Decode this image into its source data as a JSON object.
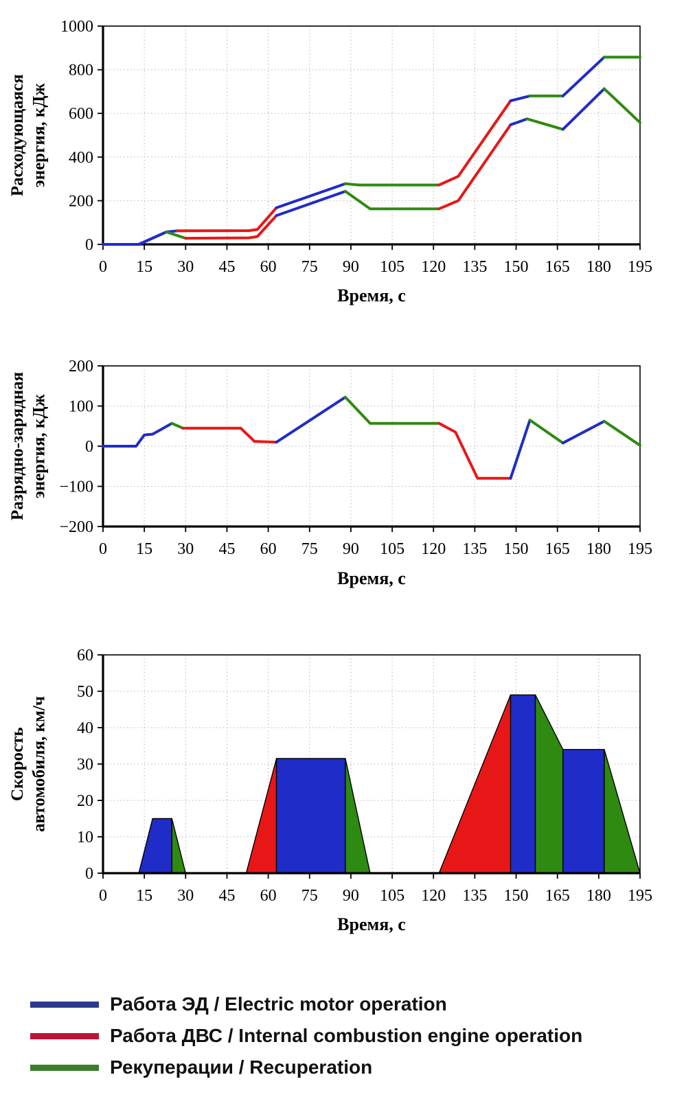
{
  "figure": {
    "background": "#ffffff"
  },
  "palette": {
    "blue": "#1f2cc8",
    "red": "#e81717",
    "green": "#2e8a10"
  },
  "chart_data": [
    {
      "id": "consumed-energy",
      "type": "line",
      "ylabel": "Расходующаяся\nэнергия, кДж",
      "xlabel": "Время, с",
      "xlim": [
        0,
        195
      ],
      "ylim": [
        0,
        1000
      ],
      "x_ticks": [
        0,
        15,
        30,
        45,
        60,
        75,
        90,
        105,
        120,
        135,
        150,
        165,
        180,
        195
      ],
      "y_ticks": [
        0,
        200,
        400,
        600,
        800,
        1000
      ],
      "grid": true,
      "series": [
        {
          "name": "line-1",
          "segments": [
            {
              "color": "blue",
              "points": [
                [
                  0,
                  0
                ],
                [
                  13,
                  0
                ],
                [
                  23,
                  57
                ],
                [
                  27,
                  62
                ]
              ]
            },
            {
              "color": "red",
              "points": [
                [
                  27,
                  62
                ],
                [
                  53,
                  63
                ],
                [
                  56,
                  68
                ],
                [
                  63,
                  168
                ]
              ]
            },
            {
              "color": "blue",
              "points": [
                [
                  63,
                  168
                ],
                [
                  88,
                  278
                ]
              ]
            },
            {
              "color": "green",
              "points": [
                [
                  88,
                  278
                ],
                [
                  93,
                  272
                ],
                [
                  122,
                  272
                ]
              ]
            },
            {
              "color": "red",
              "points": [
                [
                  122,
                  272
                ],
                [
                  129,
                  312
                ],
                [
                  148,
                  658
                ]
              ]
            },
            {
              "color": "blue",
              "points": [
                [
                  148,
                  658
                ],
                [
                  155,
                  680
                ]
              ]
            },
            {
              "color": "green",
              "points": [
                [
                  155,
                  680
                ],
                [
                  167,
                  680
                ]
              ]
            },
            {
              "color": "blue",
              "points": [
                [
                  167,
                  680
                ],
                [
                  182,
                  858
                ]
              ]
            },
            {
              "color": "green",
              "points": [
                [
                  182,
                  858
                ],
                [
                  195,
                  858
                ]
              ]
            }
          ]
        },
        {
          "name": "line-2",
          "segments": [
            {
              "color": "blue",
              "points": [
                [
                  0,
                  0
                ],
                [
                  13,
                  0
                ],
                [
                  23,
                  57
                ]
              ]
            },
            {
              "color": "green",
              "points": [
                [
                  23,
                  57
                ],
                [
                  30,
                  28
                ]
              ]
            },
            {
              "color": "red",
              "points": [
                [
                  30,
                  28
                ],
                [
                  53,
                  30
                ],
                [
                  56,
                  36
                ],
                [
                  63,
                  132
                ]
              ]
            },
            {
              "color": "blue",
              "points": [
                [
                  63,
                  132
                ],
                [
                  88,
                  243
                ]
              ]
            },
            {
              "color": "green",
              "points": [
                [
                  88,
                  243
                ],
                [
                  97,
                  163
                ],
                [
                  122,
                  163
                ]
              ]
            },
            {
              "color": "red",
              "points": [
                [
                  122,
                  163
                ],
                [
                  129,
                  200
                ],
                [
                  148,
                  548
                ]
              ]
            },
            {
              "color": "blue",
              "points": [
                [
                  148,
                  548
                ],
                [
                  154,
                  575
                ]
              ]
            },
            {
              "color": "green",
              "points": [
                [
                  154,
                  575
                ],
                [
                  167,
                  527
                ]
              ]
            },
            {
              "color": "blue",
              "points": [
                [
                  167,
                  527
                ],
                [
                  182,
                  713
                ]
              ]
            },
            {
              "color": "green",
              "points": [
                [
                  182,
                  713
                ],
                [
                  195,
                  558
                ]
              ]
            }
          ]
        }
      ]
    },
    {
      "id": "charge-discharge-energy",
      "type": "line",
      "ylabel": "Разрядно-зарядная\nэнергия, кДж",
      "xlabel": "Время, с",
      "xlim": [
        0,
        195
      ],
      "ylim": [
        -200,
        200
      ],
      "x_ticks": [
        0,
        15,
        30,
        45,
        60,
        75,
        90,
        105,
        120,
        135,
        150,
        165,
        180,
        195
      ],
      "y_ticks": [
        -200,
        -100,
        0,
        100,
        200
      ],
      "grid": true,
      "series": [
        {
          "name": "battery-energy-line",
          "segments": [
            {
              "color": "blue",
              "points": [
                [
                  0,
                  0
                ],
                [
                  12,
                  0
                ],
                [
                  15,
                  28
                ],
                [
                  18,
                  30
                ],
                [
                  25,
                  57
                ]
              ]
            },
            {
              "color": "green",
              "points": [
                [
                  25,
                  57
                ],
                [
                  29,
                  45
                ]
              ]
            },
            {
              "color": "red",
              "points": [
                [
                  29,
                  45
                ],
                [
                  50,
                  45
                ],
                [
                  55,
                  12
                ],
                [
                  63,
                  10
                ]
              ]
            },
            {
              "color": "blue",
              "points": [
                [
                  63,
                  10
                ],
                [
                  88,
                  122
                ]
              ]
            },
            {
              "color": "green",
              "points": [
                [
                  88,
                  122
                ],
                [
                  97,
                  57
                ],
                [
                  122,
                  57
                ]
              ]
            },
            {
              "color": "red",
              "points": [
                [
                  122,
                  57
                ],
                [
                  128,
                  35
                ],
                [
                  136,
                  -80
                ],
                [
                  148,
                  -80
                ]
              ]
            },
            {
              "color": "blue",
              "points": [
                [
                  148,
                  -80
                ],
                [
                  155,
                  65
                ]
              ]
            },
            {
              "color": "green",
              "points": [
                [
                  155,
                  65
                ],
                [
                  167,
                  8
                ]
              ]
            },
            {
              "color": "blue",
              "points": [
                [
                  167,
                  8
                ],
                [
                  182,
                  62
                ]
              ]
            },
            {
              "color": "green",
              "points": [
                [
                  182,
                  62
                ],
                [
                  195,
                  2
                ]
              ]
            }
          ]
        }
      ]
    },
    {
      "id": "vehicle-speed",
      "type": "area",
      "ylabel": "Скорость\nавтомобиля, км/ч",
      "xlabel": "Время, с",
      "xlim": [
        0,
        195
      ],
      "ylim": [
        0,
        60
      ],
      "x_ticks": [
        0,
        15,
        30,
        45,
        60,
        75,
        90,
        105,
        120,
        135,
        150,
        165,
        180,
        195
      ],
      "y_ticks": [
        0,
        10,
        20,
        30,
        40,
        50,
        60
      ],
      "grid": true,
      "areas": [
        {
          "color": "blue",
          "points": [
            [
              13,
              0
            ],
            [
              18,
              15
            ],
            [
              25,
              15
            ],
            [
              25,
              0
            ]
          ]
        },
        {
          "color": "green",
          "points": [
            [
              25,
              0
            ],
            [
              25,
              15
            ],
            [
              30,
              0
            ]
          ]
        },
        {
          "color": "red",
          "points": [
            [
              52,
              0
            ],
            [
              63,
              31.5
            ],
            [
              63,
              0
            ]
          ]
        },
        {
          "color": "blue",
          "points": [
            [
              63,
              0
            ],
            [
              63,
              31.5
            ],
            [
              88,
              31.5
            ],
            [
              88,
              0
            ]
          ]
        },
        {
          "color": "green",
          "points": [
            [
              88,
              0
            ],
            [
              88,
              31.5
            ],
            [
              97,
              0
            ]
          ]
        },
        {
          "color": "red",
          "points": [
            [
              122,
              0
            ],
            [
              148,
              49
            ],
            [
              148,
              0
            ]
          ]
        },
        {
          "color": "blue",
          "points": [
            [
              148,
              0
            ],
            [
              148,
              49
            ],
            [
              157,
              49
            ],
            [
              157,
              0
            ]
          ]
        },
        {
          "color": "green",
          "points": [
            [
              157,
              0
            ],
            [
              157,
              49
            ],
            [
              167,
              34
            ],
            [
              167,
              0
            ]
          ]
        },
        {
          "color": "blue",
          "points": [
            [
              167,
              0
            ],
            [
              167,
              34
            ],
            [
              182,
              34
            ],
            [
              182,
              0
            ]
          ]
        },
        {
          "color": "green",
          "points": [
            [
              182,
              0
            ],
            [
              182,
              34
            ],
            [
              195,
              0
            ]
          ]
        }
      ]
    }
  ],
  "legend": {
    "items": [
      {
        "color": "#2c3a8e",
        "label": "Работа ЭД / Electric motor operation"
      },
      {
        "color": "#c01236",
        "label": "Работа ДВС / Internal combustion engine operation"
      },
      {
        "color": "#3b7d2b",
        "label": "Рекуперации / Recuperation"
      }
    ]
  }
}
